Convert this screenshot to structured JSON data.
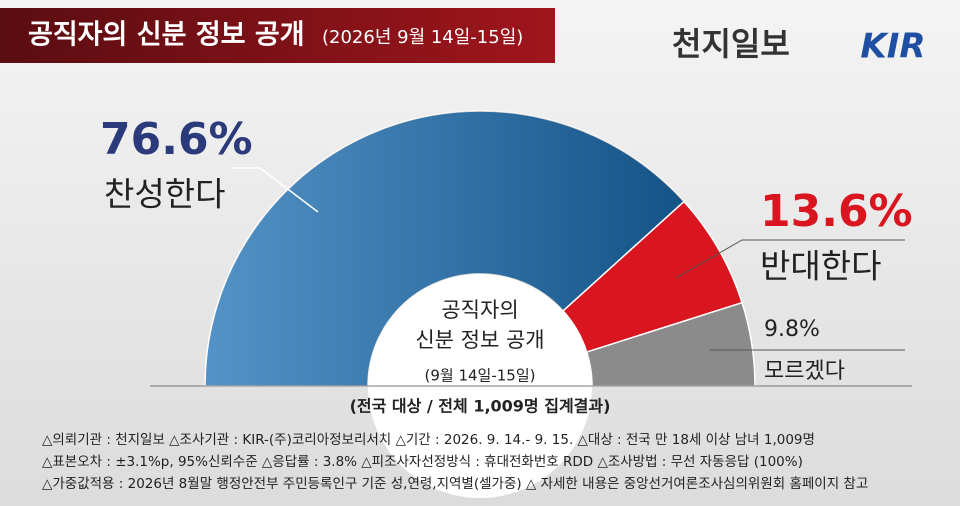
{
  "chart_data": {
    "type": "half-donut",
    "title": "공직자의 신분 정보 공개",
    "subtitle": "(2026년 9월 14일-15일)",
    "brand": "천지일보",
    "logo": "KIR",
    "categories": [
      "찬성한다",
      "반대한다",
      "모르겠다"
    ],
    "values": [
      76.6,
      13.6,
      9.8
    ],
    "value_labels": [
      "76.6%",
      "13.6%",
      "9.8%"
    ],
    "colors": [
      "#1b6fb4",
      "#d9151f",
      "#8b8b8b"
    ],
    "center_lines": [
      "공직자의",
      "신분 정보 공개",
      "(9월 14일-15일)"
    ],
    "note": "(전국 대상 / 전체 1,009명 집계결과)",
    "footer": [
      "△의뢰기관 : 천지일보   △조사기관 : KIR-(주)코리아정보리서치   △기간 : 2026. 9. 14.- 9. 15.  △대상 : 전국 만 18세 이상 남녀 1,009명",
      "△표본오차 : ±3.1%p, 95%신뢰수준  △응답률 : 3.8%  △피조사자선정방식 : 휴대전화번호 RDD  △조사방법 : 무선 자동응답 (100%)",
      "△가중값적용 : 2026년 8월말 행정안전부 주민등록인구 기준 성,연령,지역별(셀가중)  △ 자세한 내용은 중앙선거여론조사심의위원회 홈페이지 참고"
    ]
  }
}
